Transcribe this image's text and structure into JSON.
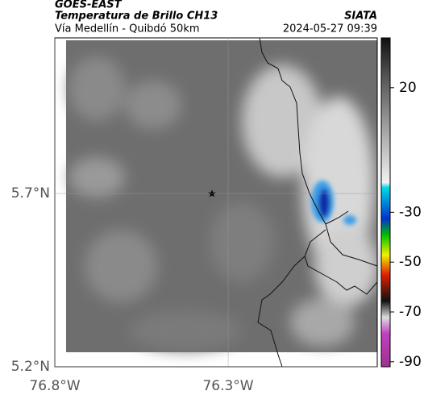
{
  "header": {
    "source": "GOES-EAST",
    "title": "Temperatura de Brillo CH13",
    "brand": "SIATA",
    "subtitle": "Vía Medellín - Quibdó 50km",
    "datetime": "2024-05-27 09:39"
  },
  "map": {
    "xlim": [
      -76.8,
      -75.87
    ],
    "ylim": [
      5.2,
      6.149
    ],
    "xticks": [
      {
        "value": -76.8,
        "label": "76.8°W"
      },
      {
        "value": -76.3,
        "label": "76.3°W"
      }
    ],
    "yticks": [
      {
        "value": 5.7,
        "label": "5.7°N"
      },
      {
        "value": 5.2,
        "label": "5.2°N"
      }
    ]
  },
  "colorbar": {
    "clim": [
      40,
      -92
    ],
    "ticks": [
      20,
      -30,
      -50,
      -70,
      -90
    ]
  }
}
